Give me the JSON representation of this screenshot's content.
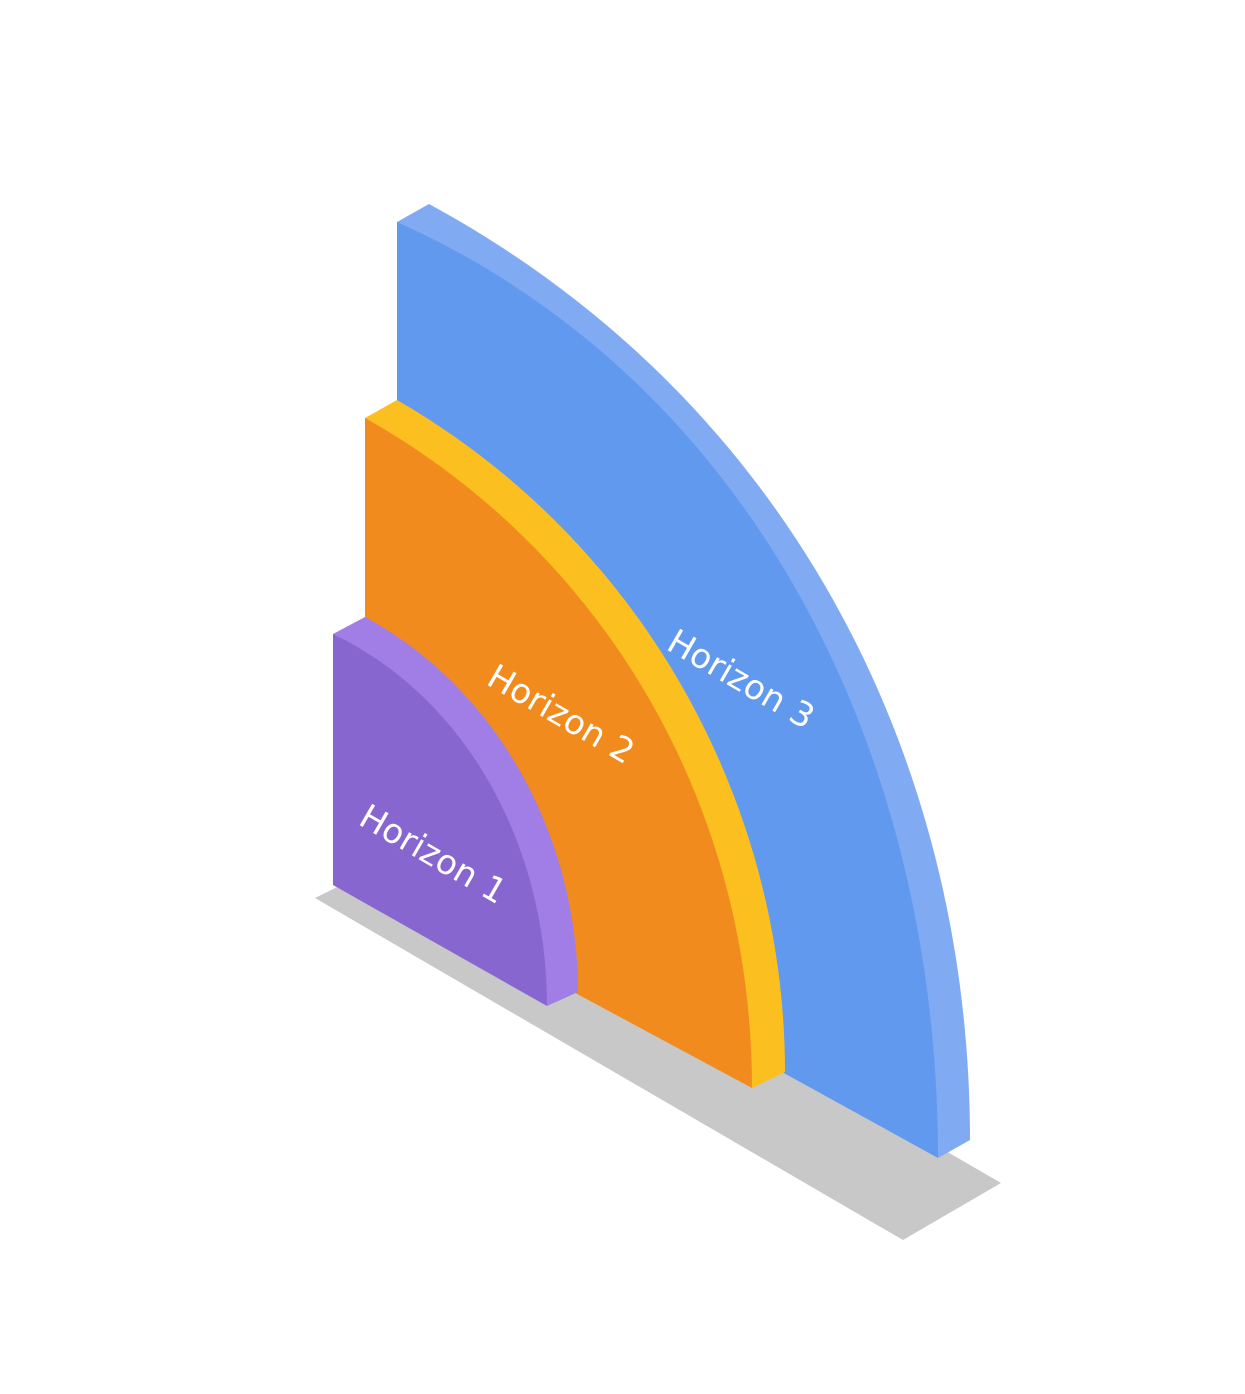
{
  "labels": [
    "Horizon 1",
    "Horizon 2",
    "Horizon 3"
  ]
}
